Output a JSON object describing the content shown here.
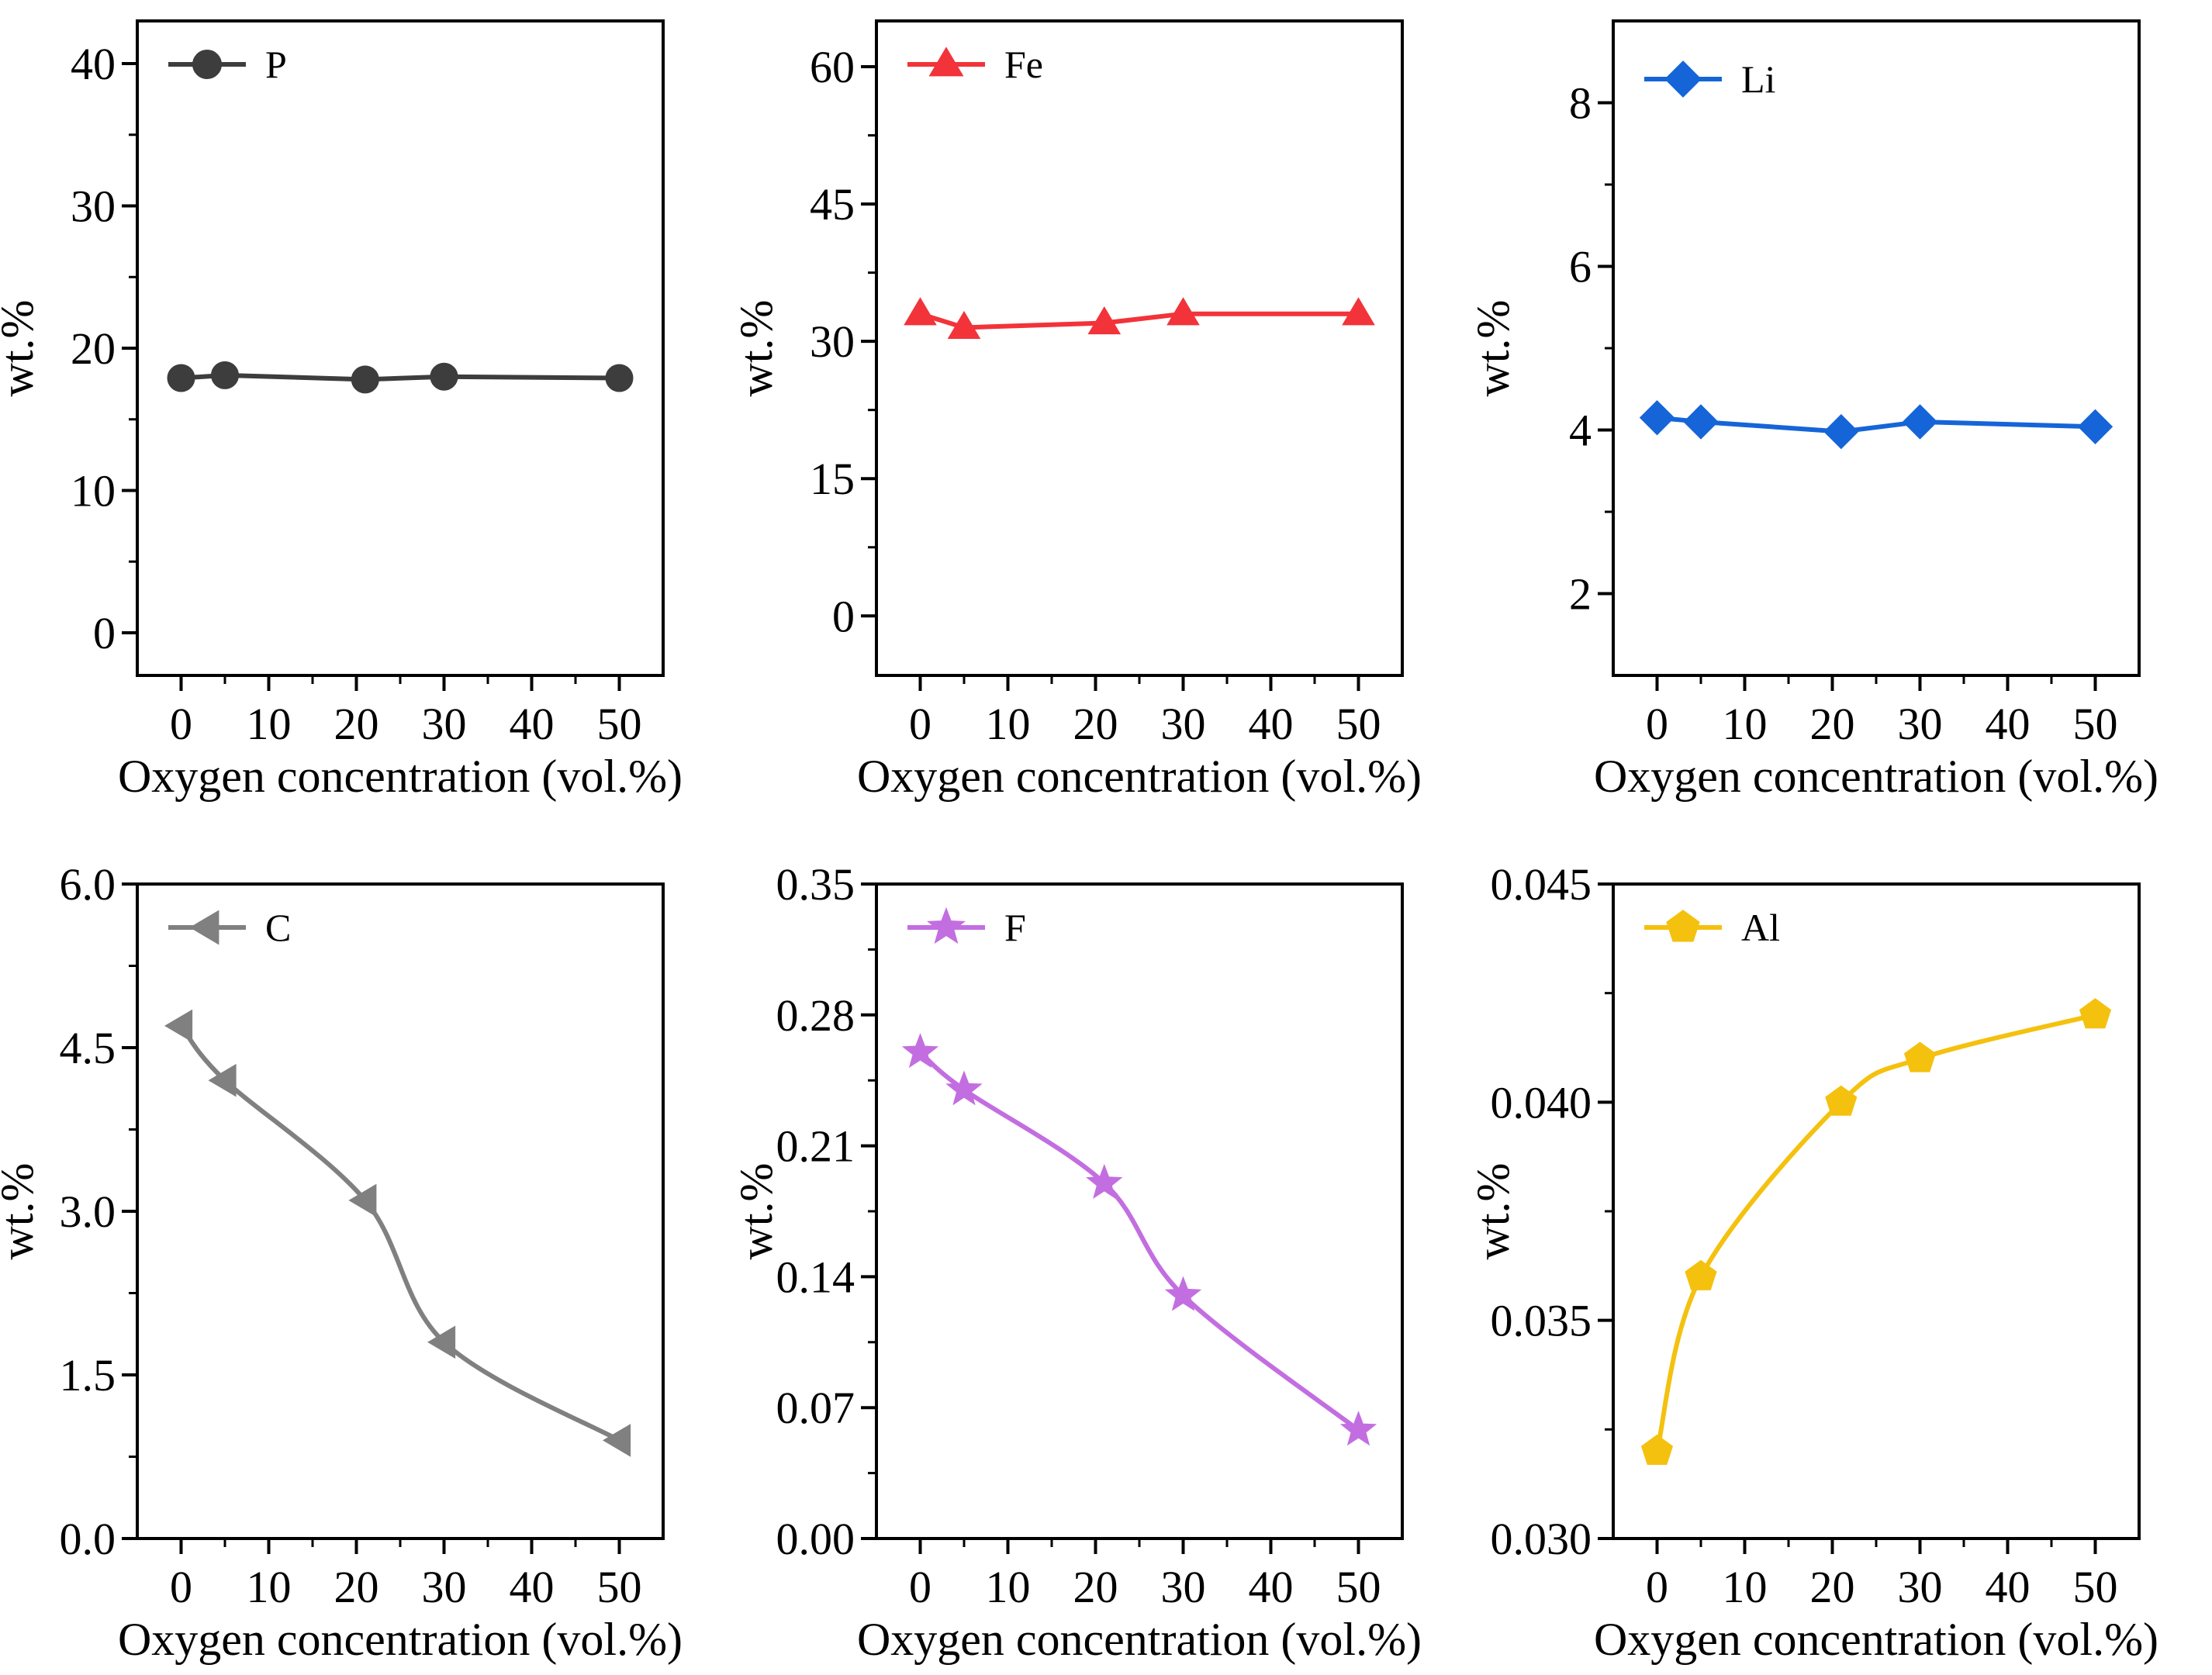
{
  "chart_data": [
    {
      "type": "line",
      "panel": "top-left",
      "legend": "P",
      "color": "#3d3d3d",
      "marker": "circle",
      "xlabel": "Oxygen concentration (vol.%)",
      "ylabel": "wt.%",
      "xlim": [
        -5,
        55
      ],
      "ylim": [
        -3,
        43
      ],
      "xticks": [
        "0",
        "10",
        "20",
        "30",
        "40",
        "50"
      ],
      "yticks": [
        "0",
        "10",
        "20",
        "30",
        "40"
      ],
      "x": [
        0,
        5,
        21,
        30,
        50
      ],
      "y": [
        17.9,
        18.1,
        17.8,
        18.0,
        17.9
      ],
      "smooth": false,
      "legend_position": "top-left"
    },
    {
      "type": "line",
      "panel": "top-middle",
      "legend": "Fe",
      "color": "#f2333a",
      "marker": "triangle-up",
      "xlabel": "Oxygen concentration (vol.%)",
      "ylabel": "wt.%",
      "xlim": [
        -5,
        55
      ],
      "ylim": [
        -6.5,
        65
      ],
      "xticks": [
        "0",
        "10",
        "20",
        "30",
        "40",
        "50"
      ],
      "yticks": [
        "0",
        "15",
        "30",
        "45",
        "60"
      ],
      "x": [
        0,
        5,
        21,
        30,
        50
      ],
      "y": [
        33.0,
        31.5,
        32.0,
        33.0,
        33.0
      ],
      "smooth": false,
      "legend_position": "top-left"
    },
    {
      "type": "line",
      "panel": "top-right",
      "legend": "Li",
      "color": "#1565d8",
      "marker": "diamond",
      "xlabel": "Oxygen concentration (vol.%)",
      "ylabel": "wt.%",
      "xlim": [
        -5,
        55
      ],
      "ylim": [
        1.0,
        9.0
      ],
      "xticks": [
        "0",
        "10",
        "20",
        "30",
        "40",
        "50"
      ],
      "yticks": [
        "2",
        "4",
        "6",
        "8"
      ],
      "x": [
        0,
        5,
        21,
        30,
        50
      ],
      "y": [
        4.15,
        4.1,
        3.98,
        4.1,
        4.04
      ],
      "smooth": false,
      "legend_position": "top-left"
    },
    {
      "type": "line",
      "panel": "bottom-left",
      "legend": "C",
      "color": "#808080",
      "marker": "triangle-left",
      "xlabel": "Oxygen concentration (vol.%)",
      "ylabel": "wt.%",
      "xlim": [
        -5,
        55
      ],
      "ylim": [
        0.0,
        6.0
      ],
      "xticks": [
        "0",
        "10",
        "20",
        "30",
        "40",
        "50"
      ],
      "yticks": [
        "0.0",
        "1.5",
        "3.0",
        "4.5",
        "6.0"
      ],
      "x": [
        0,
        5,
        21,
        30,
        50
      ],
      "y": [
        4.7,
        4.2,
        3.1,
        1.8,
        0.9
      ],
      "smooth": true,
      "legend_position": "top-left"
    },
    {
      "type": "line",
      "panel": "bottom-middle",
      "legend": "F",
      "color": "#c36ee0",
      "marker": "star",
      "xlabel": "Oxygen concentration (vol.%)",
      "ylabel": "wt.%",
      "xlim": [
        -5,
        55
      ],
      "ylim": [
        0.0,
        0.35
      ],
      "xticks": [
        "0",
        "10",
        "20",
        "30",
        "40",
        "50"
      ],
      "yticks": [
        "0.00",
        "0.07",
        "0.14",
        "0.21",
        "0.28",
        "0.35"
      ],
      "x": [
        0,
        5,
        21,
        30,
        50
      ],
      "y": [
        0.26,
        0.24,
        0.19,
        0.13,
        0.058
      ],
      "smooth": true,
      "legend_position": "top-left"
    },
    {
      "type": "line",
      "panel": "bottom-right",
      "legend": "Al",
      "color": "#f4c10e",
      "marker": "pentagon",
      "xlabel": "Oxygen concentration (vol.%)",
      "ylabel": "wt.%",
      "xlim": [
        -5,
        55
      ],
      "ylim": [
        0.03,
        0.045
      ],
      "xticks": [
        "0",
        "10",
        "20",
        "30",
        "40",
        "50"
      ],
      "yticks": [
        "0.030",
        "0.035",
        "0.040",
        "0.045"
      ],
      "x": [
        0,
        5,
        21,
        30,
        50
      ],
      "y": [
        0.032,
        0.036,
        0.04,
        0.041,
        0.042
      ],
      "smooth": true,
      "legend_position": "top-left"
    }
  ]
}
